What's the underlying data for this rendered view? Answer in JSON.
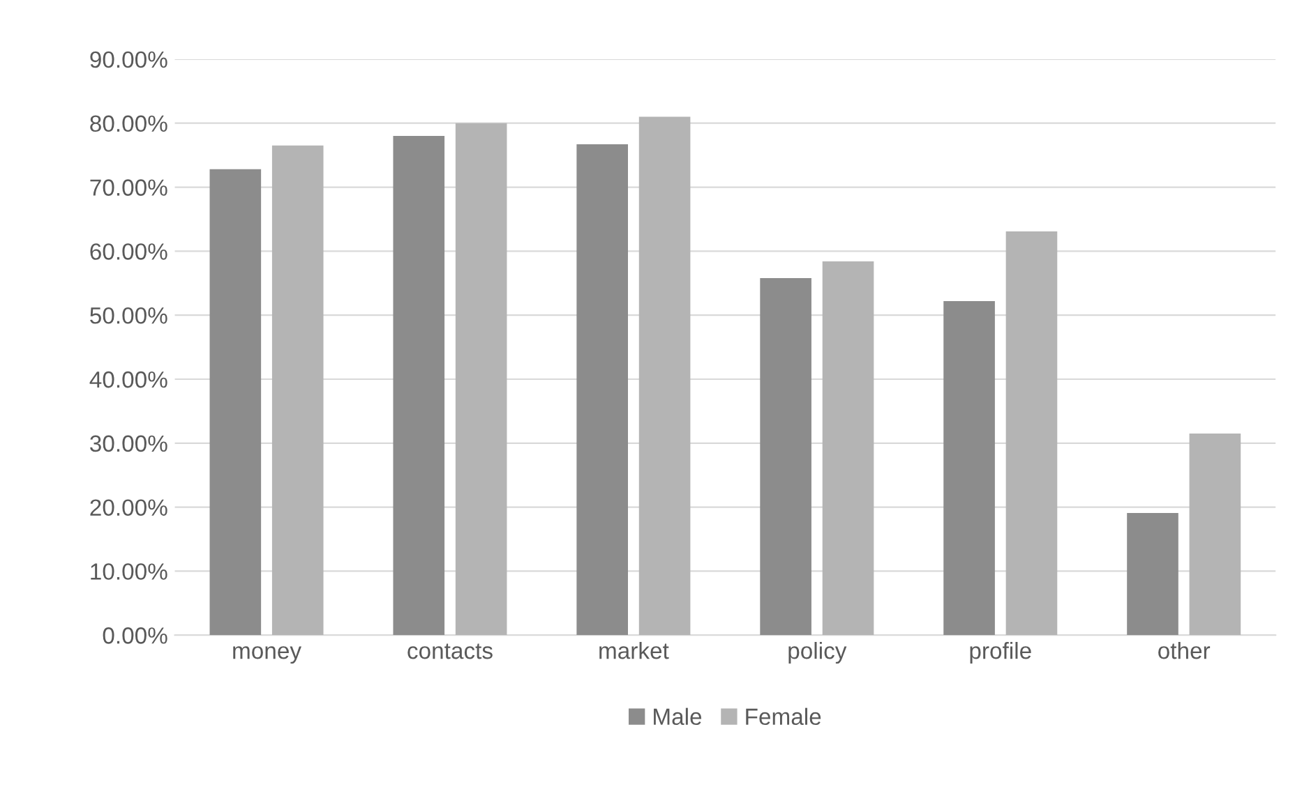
{
  "chart_data": {
    "type": "bar",
    "categories": [
      "money",
      "contacts",
      "market",
      "policy",
      "profile",
      "other"
    ],
    "series": [
      {
        "name": "Male",
        "color": "#8c8c8c",
        "values": [
          72.8,
          78.0,
          76.7,
          55.8,
          52.2,
          19.1
        ]
      },
      {
        "name": "Female",
        "color": "#b4b4b4",
        "values": [
          76.5,
          80.0,
          81.0,
          58.4,
          63.1,
          31.5
        ]
      }
    ],
    "ylim": [
      0,
      90
    ],
    "yticks": [
      {
        "value": 0,
        "label": "0.00%"
      },
      {
        "value": 10,
        "label": "10.00%"
      },
      {
        "value": 20,
        "label": "20.00%"
      },
      {
        "value": 30,
        "label": "30.00%"
      },
      {
        "value": 40,
        "label": "40.00%"
      },
      {
        "value": 50,
        "label": "50.00%"
      },
      {
        "value": 60,
        "label": "60.00%"
      },
      {
        "value": 70,
        "label": "70.00%"
      },
      {
        "value": 80,
        "label": "80.00%"
      },
      {
        "value": 90,
        "label": "90.00%"
      }
    ],
    "grid": "y",
    "legend": "bottom"
  }
}
